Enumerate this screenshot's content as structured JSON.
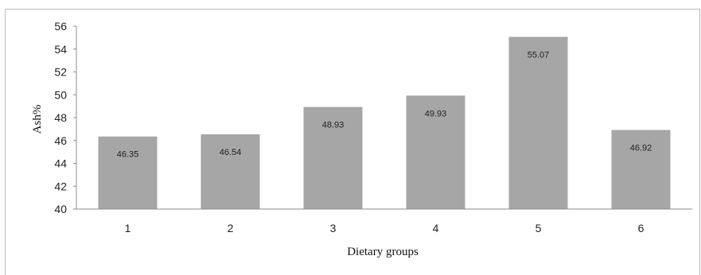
{
  "chart_data": {
    "type": "bar",
    "categories": [
      "1",
      "2",
      "3",
      "4",
      "5",
      "6"
    ],
    "values": [
      46.35,
      46.54,
      48.93,
      49.93,
      55.07,
      46.92
    ],
    "data_labels": [
      "46.35",
      "46.54",
      "48.93",
      "49.93",
      "55.07",
      "46.92"
    ],
    "title": "",
    "xlabel": "Dietary groups",
    "ylabel": "Ash%",
    "ylim": [
      40,
      56
    ],
    "yticks": [
      40,
      42,
      44,
      46,
      48,
      50,
      52,
      54,
      56
    ],
    "grid": false,
    "legend": "none",
    "bar_color": "#a6a6a6"
  }
}
